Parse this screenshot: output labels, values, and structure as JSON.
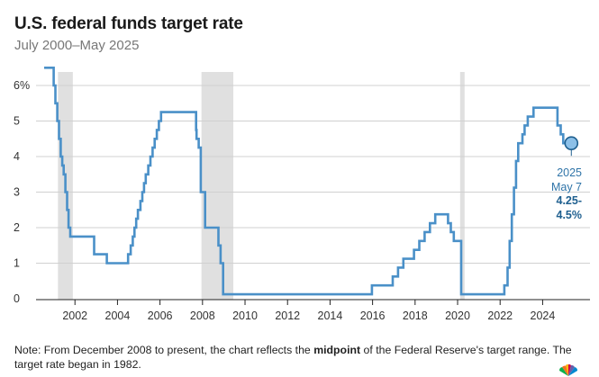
{
  "title": "U.S. federal funds target rate",
  "subtitle": "July 2000–May 2025",
  "note": {
    "part1": "Note: From December 2008 to present, the chart reflects the ",
    "bold": "midpoint",
    "part2": " of the Federal Reserve's target range. The target rate began in 1982."
  },
  "annotation": {
    "year": "2025",
    "date": "May 7",
    "value_line1": "4.25-",
    "value_line2": "4.5%"
  },
  "colors": {
    "line": "#4a90c8",
    "recession": "#e0e0e0",
    "grid": "#d0d0d0",
    "axis": "#222222"
  },
  "chart_data": {
    "type": "line",
    "title": "U.S. federal funds target rate",
    "subtitle": "July 2000–May 2025",
    "xlim": [
      2000.55,
      2025.5
    ],
    "ylim": [
      0,
      6.5
    ],
    "y_ticks": [
      0,
      1,
      2,
      3,
      4,
      5,
      6
    ],
    "y_tick_labels": [
      "0",
      "1",
      "2",
      "3",
      "4",
      "5",
      "6%"
    ],
    "x_ticks": [
      2002,
      2004,
      2006,
      2008,
      2010,
      2012,
      2014,
      2016,
      2018,
      2020,
      2022,
      2024
    ],
    "x_tick_labels": [
      "2002",
      "2004",
      "2006",
      "2008",
      "2010",
      "2012",
      "2014",
      "2016",
      "2018",
      "2020",
      "2022",
      "2024"
    ],
    "recessions": [
      [
        2001.2,
        2001.9
      ],
      [
        2007.95,
        2009.45
      ],
      [
        2020.12,
        2020.33
      ]
    ],
    "series": [
      {
        "step": true,
        "x": [
          2000.55,
          2001.0,
          2001.08,
          2001.17,
          2001.25,
          2001.33,
          2001.4,
          2001.47,
          2001.55,
          2001.63,
          2001.7,
          2001.78,
          2001.85,
          2001.95,
          2002.9,
          2003.5,
          2004.5,
          2004.62,
          2004.72,
          2004.8,
          2004.88,
          2004.96,
          2005.08,
          2005.17,
          2005.25,
          2005.33,
          2005.45,
          2005.55,
          2005.65,
          2005.75,
          2005.85,
          2005.95,
          2006.05,
          2006.15,
          2006.25,
          2006.35,
          2006.47,
          2007.7,
          2007.72,
          2007.82,
          2007.92,
          2008.05,
          2008.12,
          2008.3,
          2008.75,
          2008.85,
          2008.97,
          2015.97,
          2016.95,
          2017.2,
          2017.45,
          2017.95,
          2018.2,
          2018.45,
          2018.7,
          2018.95,
          2019.55,
          2019.68,
          2019.82,
          2020.17,
          2020.22,
          2022.2,
          2022.35,
          2022.45,
          2022.55,
          2022.65,
          2022.75,
          2022.85,
          2023.05,
          2023.15,
          2023.3,
          2023.57,
          2024.7,
          2024.85,
          2024.97,
          2025.35
        ],
        "y": [
          6.5,
          6.0,
          5.5,
          5.0,
          4.5,
          4.0,
          3.75,
          3.5,
          3.0,
          2.5,
          2.0,
          1.75,
          1.75,
          1.75,
          1.25,
          1.0,
          1.25,
          1.5,
          1.75,
          2.0,
          2.25,
          2.5,
          2.75,
          3.0,
          3.25,
          3.5,
          3.75,
          4.0,
          4.25,
          4.5,
          4.75,
          5.0,
          5.25,
          5.25,
          5.25,
          5.25,
          5.25,
          4.75,
          4.5,
          4.25,
          3.0,
          3.0,
          2.0,
          2.0,
          1.5,
          1.0,
          0.125,
          0.375,
          0.625,
          0.875,
          1.125,
          1.375,
          1.625,
          1.875,
          2.125,
          2.375,
          2.125,
          1.875,
          1.625,
          0.125,
          0.125,
          0.375,
          0.875,
          1.625,
          2.375,
          3.125,
          3.875,
          4.375,
          4.625,
          4.875,
          5.125,
          5.375,
          4.875,
          4.625,
          4.375,
          4.375
        ],
        "last_point": [
          2025.35,
          4.375
        ]
      }
    ]
  }
}
